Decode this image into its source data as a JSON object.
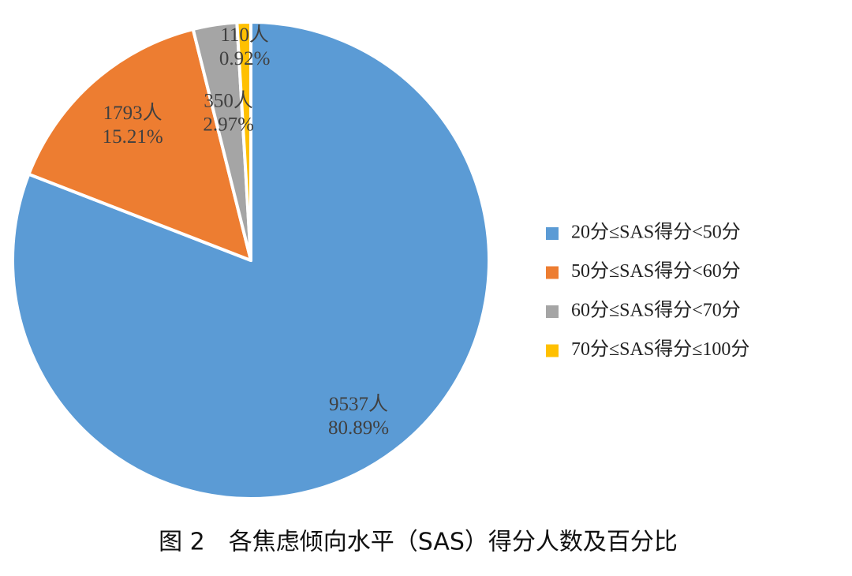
{
  "chart_data": {
    "type": "pie",
    "title": "图 2　各焦虑倾向水平（SAS）得分人数及百分比",
    "categories": [
      "20分≤SAS得分<50分",
      "50分≤SAS得分<60分",
      "60分≤SAS得分<70分",
      "70分≤SAS得分≤100分"
    ],
    "values": [
      9537,
      1793,
      350,
      110
    ],
    "value_labels": [
      "9537人",
      "1793人",
      "350人",
      "110人"
    ],
    "percent_labels": [
      "80.89%",
      "15.21%",
      "2.97%",
      "0.92%"
    ],
    "colors": [
      "#5b9bd5",
      "#ed7d31",
      "#a5a5a5",
      "#ffc000"
    ],
    "legend": "right"
  }
}
